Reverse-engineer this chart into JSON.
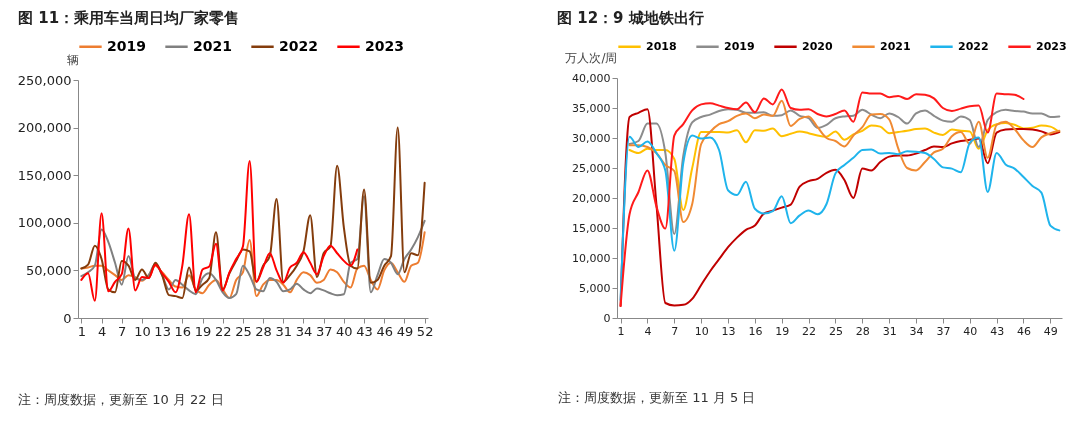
{
  "chart_data": [
    {
      "type": "line",
      "title": "图 11：乘用车当周日均厂家零售",
      "ylabel": "辆",
      "legend": "top",
      "annotations": [
        "注：周度数据，更新至 10 月 22 日"
      ],
      "x": [
        1,
        2,
        3,
        4,
        5,
        6,
        7,
        8,
        9,
        10,
        11,
        12,
        13,
        14,
        15,
        16,
        17,
        18,
        19,
        20,
        21,
        22,
        23,
        24,
        25,
        26,
        27,
        28,
        29,
        30,
        31,
        32,
        33,
        34,
        35,
        36,
        37,
        38,
        39,
        40,
        41,
        42,
        43,
        44,
        45,
        46,
        47,
        48,
        49,
        50,
        51,
        52
      ],
      "xlim": [
        0.5,
        52.5
      ],
      "xticks": [
        1,
        4,
        7,
        10,
        13,
        16,
        19,
        22,
        25,
        28,
        31,
        34,
        37,
        40,
        43,
        46,
        49,
        52
      ],
      "ylim": [
        0,
        250000
      ],
      "yticks": [
        0,
        {
          "value": 50000,
          "label": "50,000"
        },
        {
          "value": 100000,
          "label": "100,000"
        },
        {
          "value": 150000,
          "label": "150,000"
        },
        {
          "value": 200000,
          "label": "200,000"
        },
        {
          "value": 250000,
          "label": "250,000"
        }
      ],
      "series": [
        {
          "name": "2019",
          "color": "#ed7d31",
          "values": [
            52000,
            53000,
            55000,
            55000,
            50000,
            45000,
            40000,
            45000,
            43000,
            39000,
            45000,
            55000,
            48000,
            40000,
            33000,
            32000,
            45000,
            30000,
            26000,
            35000,
            40000,
            30000,
            21000,
            40000,
            48000,
            82000,
            23000,
            35000,
            40000,
            40000,
            35000,
            27000,
            40000,
            48000,
            45000,
            37000,
            40000,
            51000,
            48000,
            38000,
            32000,
            52000,
            55000,
            40000,
            30000,
            50000,
            58000,
            48000,
            38000,
            55000,
            58000,
            90000
          ]
        },
        {
          "name": "2021",
          "color": "#808080",
          "values": [
            44000,
            48000,
            55000,
            93000,
            80000,
            58000,
            35000,
            65000,
            42000,
            40000,
            45000,
            57000,
            45000,
            30000,
            40000,
            35000,
            29000,
            25000,
            42000,
            47000,
            40000,
            27000,
            21000,
            25000,
            55000,
            45000,
            30000,
            28000,
            42000,
            38000,
            28000,
            30000,
            36000,
            30000,
            26000,
            31000,
            29000,
            26000,
            24000,
            25000,
            58000,
            62000,
            128000,
            27000,
            45000,
            62000,
            58000,
            46000,
            62000,
            72000,
            85000,
            102000
          ]
        },
        {
          "name": "2022",
          "color": "#843c0c",
          "values": [
            52000,
            56000,
            76000,
            62000,
            30000,
            27000,
            60000,
            55000,
            40000,
            51000,
            42000,
            58000,
            45000,
            24000,
            23000,
            21000,
            53000,
            29000,
            35000,
            42000,
            90000,
            30000,
            47000,
            60000,
            72000,
            70000,
            38000,
            55000,
            65000,
            125000,
            38000,
            45000,
            55000,
            70000,
            108000,
            43000,
            68000,
            75000,
            160000,
            95000,
            55000,
            52000,
            135000,
            37000,
            40000,
            55000,
            65000,
            200000,
            48000,
            68000,
            66000,
            142000
          ]
        },
        {
          "name": "2023",
          "color": "#ff0000",
          "values": [
            40000,
            47000,
            18000,
            110000,
            28000,
            38000,
            46000,
            94000,
            29000,
            43000,
            42000,
            56000,
            47000,
            38000,
            27000,
            55000,
            109000,
            27000,
            51000,
            54000,
            78000,
            29000,
            48000,
            62000,
            75000,
            165000,
            38000,
            53000,
            68000,
            50000,
            37000,
            53000,
            58000,
            69000,
            58000,
            46000,
            65000,
            76000,
            68000,
            60000,
            55000,
            72000,
            null,
            null,
            null,
            null,
            null,
            null,
            null,
            null,
            null,
            null
          ]
        }
      ]
    },
    {
      "type": "line",
      "title": "图 12：9 城地铁出行",
      "ylabel": "万人次/周",
      "legend": "top",
      "annotations": [
        "注：周度数据，更新至 11 月 5 日"
      ],
      "x": [
        1,
        2,
        3,
        4,
        5,
        6,
        7,
        8,
        9,
        10,
        11,
        12,
        13,
        14,
        15,
        16,
        17,
        18,
        19,
        20,
        21,
        22,
        23,
        24,
        25,
        26,
        27,
        28,
        29,
        30,
        31,
        32,
        33,
        34,
        35,
        36,
        37,
        38,
        39,
        40,
        41,
        42,
        43,
        44,
        45,
        46,
        47,
        48,
        49,
        50
      ],
      "xlim": [
        0.6,
        50.3
      ],
      "xticks": [
        1,
        4,
        7,
        10,
        13,
        16,
        19,
        22,
        25,
        28,
        31,
        34,
        37,
        40,
        43,
        46,
        49
      ],
      "ylim": [
        0,
        40000
      ],
      "yticks": [
        0,
        {
          "value": 5000,
          "label": "5,000"
        },
        {
          "value": 10000,
          "label": "10,000"
        },
        {
          "value": 15000,
          "label": "15,000"
        },
        {
          "value": 20000,
          "label": "20,000"
        },
        {
          "value": 25000,
          "label": "25,000"
        },
        {
          "value": 30000,
          "label": "30,000"
        },
        {
          "value": 35000,
          "label": "35,000"
        },
        {
          "value": 40000,
          "label": "40,000"
        }
      ],
      "series": [
        {
          "name": "2018",
          "color": "#ffc000",
          "values": [
            null,
            28000,
            27500,
            28200,
            28000,
            28000,
            26500,
            18000,
            25000,
            31000,
            31000,
            31000,
            30900,
            31300,
            29300,
            31300,
            31200,
            31600,
            30300,
            30700,
            31100,
            30800,
            30400,
            30200,
            31100,
            29700,
            30600,
            31200,
            32100,
            31900,
            30800,
            31000,
            31200,
            31500,
            31600,
            30900,
            30500,
            31400,
            31200,
            31100,
            28200,
            31300,
            32300,
            32500,
            32200,
            31600,
            31700,
            32100,
            31900,
            31000
          ]
        },
        {
          "name": "2019",
          "color": "#8c8c8c",
          "values": [
            null,
            29000,
            29500,
            32400,
            32400,
            27500,
            14000,
            27000,
            32600,
            33500,
            33900,
            34500,
            34800,
            34700,
            34200,
            34200,
            34300,
            33700,
            33800,
            34600,
            33700,
            33300,
            31700,
            32200,
            33300,
            33600,
            33700,
            34700,
            33900,
            33300,
            34100,
            33500,
            32400,
            34100,
            34600,
            33700,
            32900,
            32700,
            33600,
            33000,
            28500,
            33000,
            34300,
            34700,
            34500,
            34400,
            34100,
            34100,
            33500,
            33600
          ]
        },
        {
          "name": "2020",
          "color": "#c00000",
          "values": [
            2000,
            33500,
            34200,
            34800,
            19000,
            2500,
            2100,
            2200,
            3200,
            5500,
            7800,
            9800,
            11800,
            13400,
            14700,
            15400,
            17400,
            17900,
            18400,
            18900,
            21900,
            22800,
            23200,
            24200,
            24700,
            23000,
            20000,
            24900,
            24600,
            26000,
            26900,
            27100,
            27100,
            27400,
            28000,
            28600,
            28500,
            29100,
            29500,
            29700,
            29900,
            25800,
            30900,
            31400,
            31500,
            31500,
            31400,
            31100,
            30600,
            31000
          ]
        },
        {
          "name": "2021",
          "color": "#f08a33",
          "values": [
            null,
            28800,
            28800,
            28500,
            27500,
            25500,
            24500,
            16000,
            19000,
            29000,
            31000,
            32300,
            32800,
            33700,
            34100,
            33300,
            33900,
            33700,
            36200,
            32000,
            33200,
            33600,
            31800,
            30000,
            29500,
            28600,
            30400,
            31800,
            33900,
            34000,
            33100,
            28300,
            25000,
            24600,
            26000,
            27600,
            28200,
            30300,
            31000,
            29000,
            32700,
            26700,
            32200,
            32700,
            31500,
            29600,
            28500,
            30100,
            30800,
            31200
          ]
        },
        {
          "name": "2022",
          "color": "#1fb4ec",
          "values": [
            3000,
            30200,
            28500,
            29400,
            27500,
            24600,
            11200,
            25800,
            30400,
            29900,
            30100,
            28000,
            21300,
            20500,
            22700,
            18200,
            17400,
            17800,
            20300,
            15800,
            17100,
            17900,
            17300,
            19000,
            24100,
            25500,
            26700,
            28000,
            28100,
            27400,
            27500,
            27300,
            27800,
            27700,
            27500,
            26500,
            25100,
            24900,
            24300,
            29200,
            30100,
            21000,
            27500,
            25600,
            24900,
            23500,
            22000,
            20900,
            15400,
            14600
          ]
        },
        {
          "name": "2023",
          "color": "#ff1a1a",
          "values": [
            2000,
            17300,
            21000,
            24600,
            18600,
            14900,
            30400,
            32300,
            34600,
            35600,
            35800,
            35400,
            35000,
            34800,
            35900,
            34300,
            36600,
            35600,
            38100,
            35000,
            34700,
            34800,
            34000,
            33600,
            34000,
            34600,
            32700,
            37600,
            37400,
            37400,
            36800,
            37000,
            36500,
            37300,
            37200,
            36600,
            35000,
            34500,
            34900,
            35300,
            35400,
            30900,
            37400,
            37300,
            37200,
            36500,
            null,
            null,
            null,
            null
          ]
        }
      ]
    }
  ]
}
